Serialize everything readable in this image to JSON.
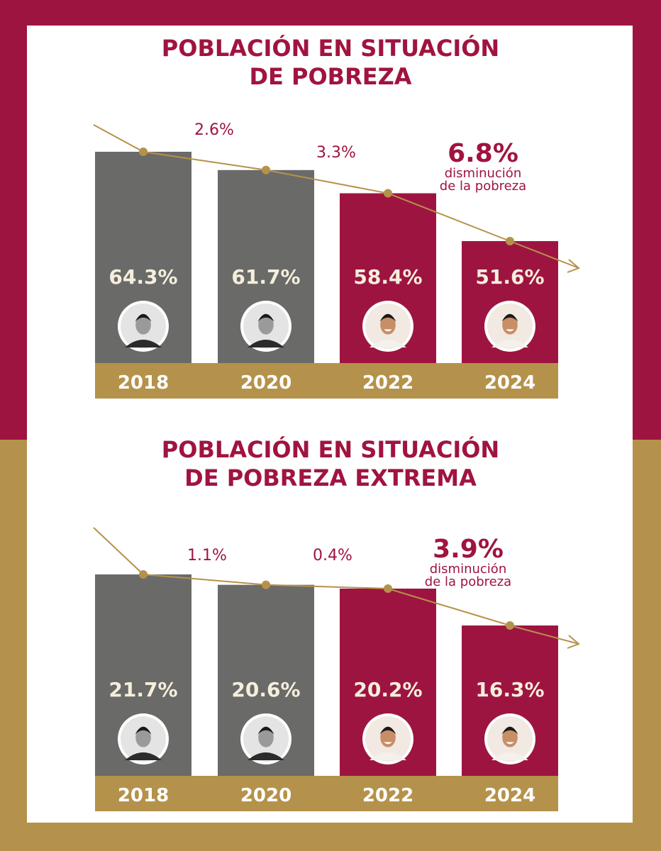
{
  "colors": {
    "maroon": "#9e1440",
    "gold": "#b5924b",
    "gray": "#6a6a69",
    "cream": "#f5eedc",
    "white": "#ffffff"
  },
  "chart_data": [
    {
      "type": "bar",
      "title": "POBLACIÓN EN SITUACIÓN DE POBREZA",
      "title_lines": [
        "POBLACIÓN EN SITUACIÓN",
        "DE POBREZA"
      ],
      "categories": [
        "2018",
        "2020",
        "2022",
        "2024"
      ],
      "values": [
        64.3,
        61.7,
        58.4,
        51.6
      ],
      "value_labels": [
        "64.3%",
        "61.7%",
        "58.4%",
        "51.6%"
      ],
      "bar_colors": [
        "gray",
        "gray",
        "maroon",
        "maroon"
      ],
      "changes": [
        "2.6%",
        "3.3%"
      ],
      "highlight": {
        "value": "6.8%",
        "line1": "disminución",
        "line2": "de la pobreza"
      },
      "trend_line": true
    },
    {
      "type": "bar",
      "title": "POBLACIÓN EN SITUACIÓN DE POBREZA EXTREMA",
      "title_lines": [
        "POBLACIÓN EN SITUACIÓN",
        "DE POBREZA EXTREMA"
      ],
      "categories": [
        "2018",
        "2020",
        "2022",
        "2024"
      ],
      "values": [
        21.7,
        20.6,
        20.2,
        16.3
      ],
      "value_labels": [
        "21.7%",
        "20.6%",
        "20.2%",
        "16.3%"
      ],
      "bar_colors": [
        "gray",
        "gray",
        "maroon",
        "maroon"
      ],
      "changes": [
        "1.1%",
        "0.4%"
      ],
      "highlight": {
        "value": "3.9%",
        "line1": "disminución",
        "line2": "de la pobreza"
      },
      "trend_line": true
    }
  ]
}
